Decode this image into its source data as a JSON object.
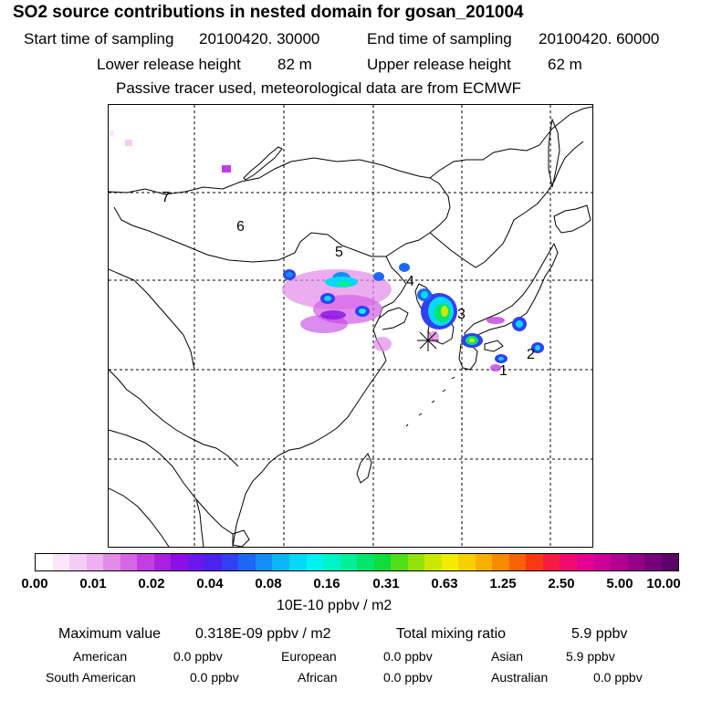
{
  "header": {
    "title": "SO2 source contributions in nested domain for gosan_201004",
    "start_label": "Start time of sampling",
    "start_value": "20100420. 30000",
    "end_label": "End time of sampling",
    "end_value": "20100420. 60000",
    "lower_label": "Lower release height",
    "lower_value": "82 m",
    "upper_label": "Upper release height",
    "upper_value": "62 m",
    "note": "Passive tracer used, meteorological data are from ECMWF"
  },
  "map": {
    "region_labels": [
      "7",
      "6",
      "5",
      "4",
      "3",
      "2",
      "1"
    ],
    "receptor": "Gosan station (asterisk marker)"
  },
  "colorbar": {
    "ticks": [
      "0.00",
      "0.01",
      "0.02",
      "0.04",
      "0.08",
      "0.16",
      "0.31",
      "0.63",
      "1.25",
      "2.50",
      "5.00",
      "10.00"
    ],
    "unit": "10E-10 ppbv / m2",
    "colors": [
      "#ffffff",
      "#fbe6fb",
      "#f5ccf5",
      "#eeb0f0",
      "#e28ae8",
      "#d566e6",
      "#c23ee2",
      "#ab1fe0",
      "#8a10e6",
      "#6a18ec",
      "#4c22f0",
      "#3240f2",
      "#1e66f4",
      "#128ef5",
      "#0cb5f6",
      "#06d8f7",
      "#00f2f0",
      "#00f3c8",
      "#00f09a",
      "#00e56c",
      "#10dc3c",
      "#52de18",
      "#94e20c",
      "#cce800",
      "#f4ec00",
      "#f8d000",
      "#f8b000",
      "#f88a00",
      "#f86200",
      "#f83a10",
      "#f81a40",
      "#f00a70",
      "#e40090",
      "#cc0096",
      "#b00090",
      "#940086",
      "#76007a",
      "#5c006a"
    ]
  },
  "footer": {
    "max_label": "Maximum value",
    "max_value": "0.318E-09 ppbv / m2",
    "total_label": "Total mixing ratio",
    "total_value": "5.9 ppbv",
    "american_label": "American",
    "american_value": "0.0 ppbv",
    "european_label": "European",
    "european_value": "0.0 ppbv",
    "asian_label": "Asian",
    "asian_value": "5.9 ppbv",
    "south_american_label": "South American",
    "south_american_value": "0.0 ppbv",
    "african_label": "African",
    "african_value": "0.0 ppbv",
    "australian_label": "Australian",
    "australian_value": "0.0 ppbv"
  }
}
